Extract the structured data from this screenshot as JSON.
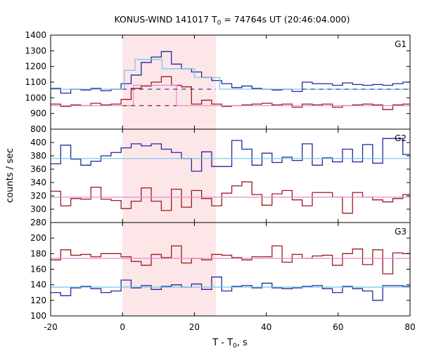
{
  "chart_data": {
    "type": "line",
    "title_main": "KONUS-WIND 141017 T",
    "title_sub": "0",
    "title_rest": " = 74764s UT (20:46:04.000)",
    "xlabel_main": "T - T",
    "xlabel_sub": "0",
    "xlabel_rest": ", s",
    "ylabel": "counts / sec",
    "xlim": [
      -20,
      80
    ],
    "x_ticks": [
      -20,
      0,
      20,
      40,
      60,
      80
    ],
    "highlight_x": [
      0,
      26
    ],
    "grid": false,
    "colors": {
      "blue": "#1f2a9e",
      "dark_red": "#9b1b1b",
      "light_blue": "#6ec6e8",
      "pink": "#e68ad2",
      "highlight": "#fde6e8"
    },
    "panels": [
      {
        "label": "G1",
        "ylim": [
          800,
          1400
        ],
        "y_ticks": [
          800,
          900,
          1000,
          1100,
          1200,
          1300,
          1400
        ],
        "bin_edges": [
          -20,
          -17.2,
          -14.4,
          -11.6,
          -8.8,
          -6,
          -3.2,
          -0.4,
          2.4,
          5.2,
          8,
          10.8,
          13.6,
          16.4,
          19.2,
          22,
          24.8,
          27.6,
          30.4,
          33.2,
          36,
          38.8,
          41.6,
          44.4,
          47.2,
          50,
          52.8,
          55.6,
          58.4,
          61.2,
          64,
          66.8,
          69.6,
          72.4,
          75.2,
          78,
          80
        ],
        "series": [
          {
            "color_key": "blue",
            "style": "step",
            "values": [
              1060,
              1030,
              1055,
              1050,
              1060,
              1045,
              1055,
              1090,
              1145,
              1225,
              1260,
              1295,
              1215,
              1185,
              1165,
              1130,
              1110,
              1090,
              1065,
              1075,
              1060,
              1055,
              1050,
              1055,
              1040,
              1100,
              1090,
              1090,
              1080,
              1095,
              1085,
              1080,
              1085,
              1080,
              1090,
              1100
            ]
          },
          {
            "color_key": "dark_red",
            "style": "step",
            "values": [
              960,
              945,
              955,
              950,
              965,
              955,
              960,
              990,
              1060,
              1075,
              1100,
              1135,
              1080,
              1070,
              960,
              985,
              960,
              945,
              950,
              955,
              960,
              965,
              955,
              960,
              940,
              960,
              955,
              960,
              940,
              950,
              955,
              960,
              955,
              925,
              955,
              960
            ]
          },
          {
            "color_key": "light_blue",
            "style": "path",
            "x": [
              -20,
              0.5,
              0.5,
              3.5,
              3.5,
              11,
              11,
              20,
              20,
              27,
              27,
              80
            ],
            "values": [
              1055,
              1055,
              1175,
              1175,
              1245,
              1245,
              1185,
              1185,
              1130,
              1130,
              1055,
              1055
            ]
          },
          {
            "color_key": "pink",
            "style": "path",
            "x": [
              -20,
              3,
              3,
              15,
              15,
              80
            ],
            "values": [
              950,
              950,
              1080,
              1080,
              950,
              950
            ]
          },
          {
            "color_key": "blue",
            "style": "dashed",
            "x": [
              0,
              26,
              50,
              80
            ],
            "values": [
              1055,
              1055,
              1055,
              1055
            ]
          },
          {
            "color_key": "dark_red",
            "style": "dashed",
            "x": [
              0,
              15
            ],
            "values": [
              950,
              950
            ]
          }
        ]
      },
      {
        "label": "G2",
        "ylim": [
          280,
          420
        ],
        "y_ticks": [
          280,
          300,
          320,
          340,
          360,
          380,
          400
        ],
        "bin_edges": [
          -20,
          -17.2,
          -14.4,
          -11.6,
          -8.8,
          -6,
          -3.2,
          -0.4,
          2.4,
          5.2,
          8,
          10.8,
          13.6,
          16.4,
          19.2,
          22,
          24.8,
          27.6,
          30.4,
          33.2,
          36,
          38.8,
          41.6,
          44.4,
          47.2,
          50,
          52.8,
          55.6,
          58.4,
          61.2,
          64,
          66.8,
          69.6,
          72.4,
          75.2,
          78,
          80
        ],
        "series": [
          {
            "color_key": "blue",
            "style": "step",
            "values": [
              368,
              396,
              375,
              366,
              372,
              380,
              385,
              392,
              398,
              395,
              398,
              390,
              385,
              376,
              357,
              386,
              364,
              364,
              403,
              390,
              366,
              384,
              370,
              378,
              373,
              398,
              366,
              377,
              371,
              390,
              371,
              397,
              369,
              406,
              406,
              382
            ]
          },
          {
            "color_key": "dark_red",
            "style": "step",
            "values": [
              327,
              305,
              316,
              315,
              333,
              315,
              313,
              301,
              312,
              332,
              312,
              298,
              330,
              303,
              328,
              316,
              305,
              324,
              335,
              341,
              322,
              306,
              323,
              328,
              314,
              305,
              325,
              325,
              318,
              294,
              325,
              318,
              314,
              311,
              316,
              322
            ]
          },
          {
            "color_key": "light_blue",
            "style": "path",
            "x": [
              -20,
              80
            ],
            "values": [
              376,
              376
            ]
          },
          {
            "color_key": "pink",
            "style": "path",
            "x": [
              -20,
              80
            ],
            "values": [
              318,
              318
            ]
          }
        ]
      },
      {
        "label": "G3",
        "ylim": [
          100,
          220
        ],
        "y_ticks": [
          100,
          120,
          140,
          160,
          180,
          200
        ],
        "bin_edges": [
          -20,
          -17.2,
          -14.4,
          -11.6,
          -8.8,
          -6,
          -3.2,
          -0.4,
          2.4,
          5.2,
          8,
          10.8,
          13.6,
          16.4,
          19.2,
          22,
          24.8,
          27.6,
          30.4,
          33.2,
          36,
          38.8,
          41.6,
          44.4,
          47.2,
          50,
          52.8,
          55.6,
          58.4,
          61.2,
          64,
          66.8,
          69.6,
          72.4,
          75.2,
          78,
          80
        ],
        "series": [
          {
            "color_key": "blue",
            "style": "step",
            "values": [
              130,
              126,
              136,
              138,
              135,
              130,
              132,
              146,
              136,
              139,
              134,
              138,
              140,
              137,
              141,
              134,
              150,
              132,
              138,
              139,
              136,
              142,
              136,
              135,
              136,
              138,
              139,
              135,
              130,
              138,
              135,
              132,
              120,
              139,
              139,
              138
            ]
          },
          {
            "color_key": "dark_red",
            "style": "step",
            "values": [
              172,
              185,
              178,
              179,
              176,
              180,
              180,
              176,
              170,
              165,
              179,
              175,
              190,
              168,
              174,
              172,
              179,
              178,
              175,
              172,
              176,
              176,
              190,
              169,
              179,
              174,
              177,
              178,
              165,
              180,
              186,
              166,
              185,
              154,
              181,
              180
            ]
          },
          {
            "color_key": "light_blue",
            "style": "path",
            "x": [
              -20,
              80
            ],
            "values": [
              137,
              137
            ]
          },
          {
            "color_key": "pink",
            "style": "path",
            "x": [
              -20,
              80
            ],
            "values": [
              174,
              174
            ]
          }
        ]
      }
    ]
  }
}
